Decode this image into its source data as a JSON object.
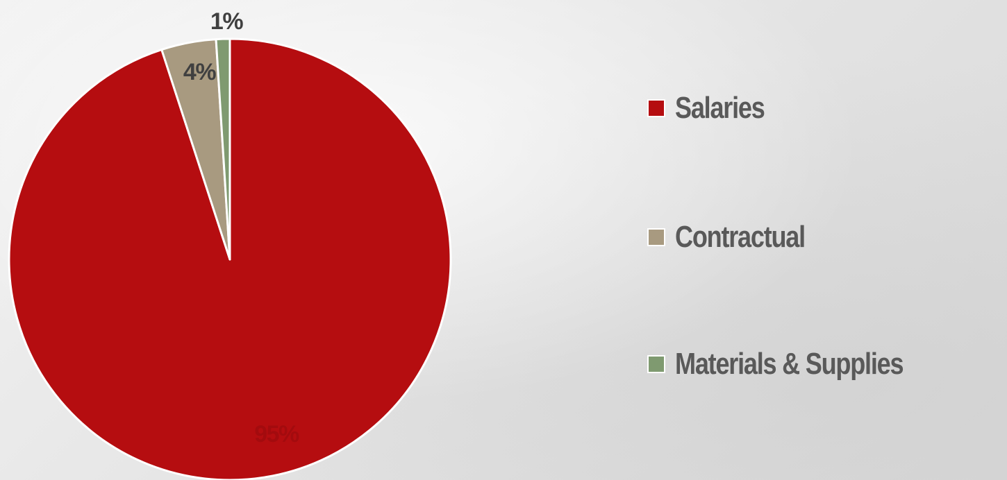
{
  "chart_data": {
    "type": "pie",
    "title": "",
    "slices": [
      {
        "name": "Salaries",
        "value": 95,
        "label": "95%",
        "color": "#b50d10",
        "label_color": "#a30b0e"
      },
      {
        "name": "Contractual",
        "value": 4,
        "label": "4%",
        "color": "#a89a80",
        "label_color": "#404040"
      },
      {
        "name": "Materials & Supplies",
        "value": 1,
        "label": "1%",
        "color": "#7f9a70",
        "label_color": "#404040"
      }
    ],
    "legend_position": "right",
    "start_angle": "12 o'clock",
    "direction": "clockwise"
  }
}
